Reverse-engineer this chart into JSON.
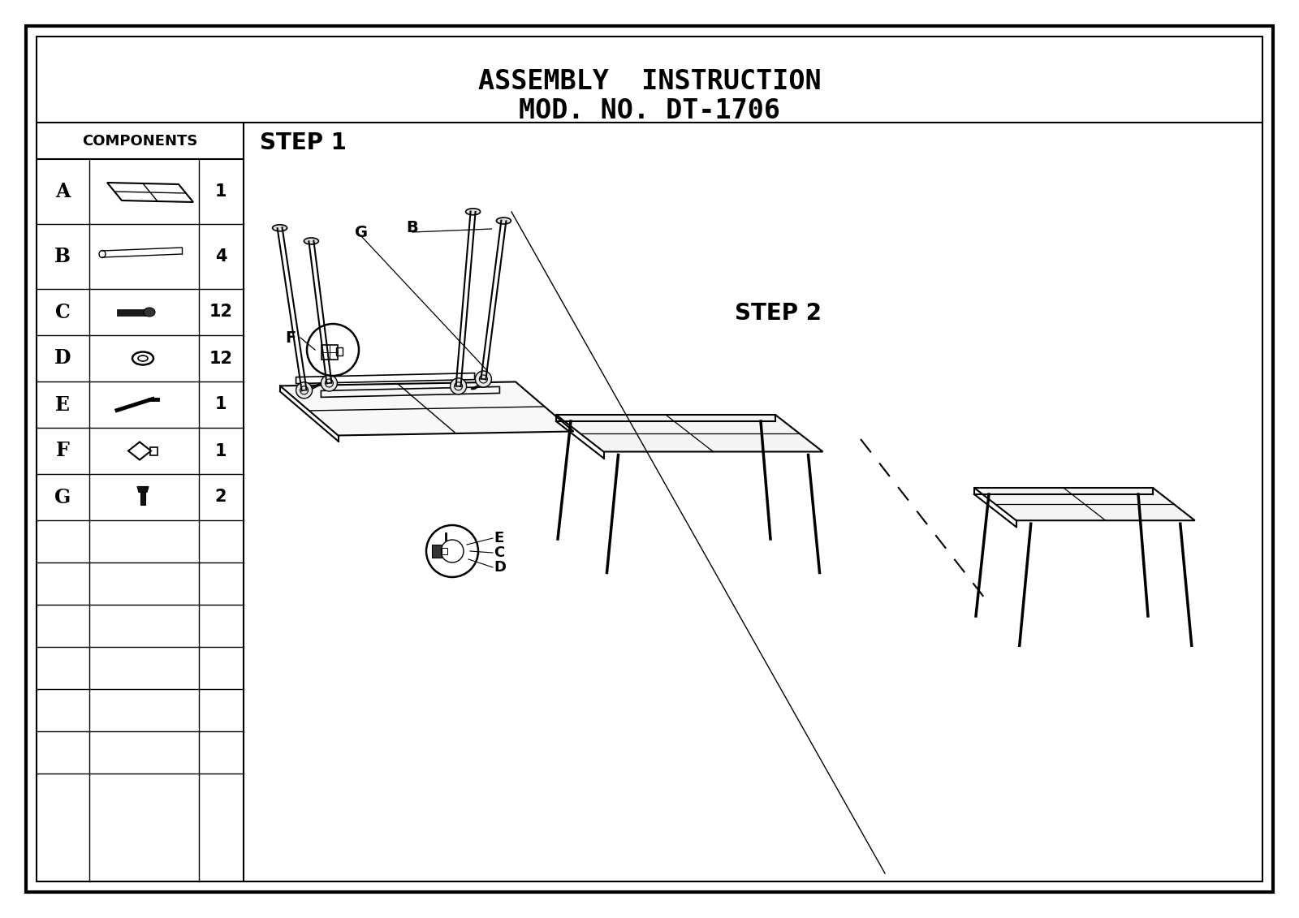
{
  "title_line1": "ASSEMBLY  INSTRUCTION",
  "title_line2": "MOD. NO. DT-1706",
  "components": [
    {
      "label": "A",
      "qty": "1"
    },
    {
      "label": "B",
      "qty": "4"
    },
    {
      "label": "C",
      "qty": "12"
    },
    {
      "label": "D",
      "qty": "12"
    },
    {
      "label": "E",
      "qty": "1"
    },
    {
      "label": "F",
      "qty": "1"
    },
    {
      "label": "G",
      "qty": "2"
    }
  ],
  "step1_label": "STEP 1",
  "step2_label": "STEP 2",
  "diag_line": [
    [
      630,
      1090
    ],
    [
      870,
      55
    ]
  ],
  "dashed_line": [
    [
      1060,
      590
    ],
    [
      1215,
      380
    ]
  ]
}
